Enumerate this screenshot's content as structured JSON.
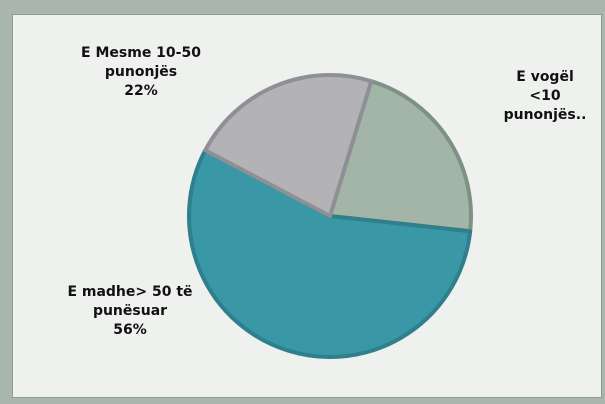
{
  "chart_data": {
    "type": "pie",
    "categories": [
      "E vogël <10 punonjës..",
      "E madhe> 50 të punësuar",
      "E Mesme 10-50 punonjës"
    ],
    "values": [
      22,
      56,
      22
    ],
    "value_labels": [
      null,
      "56%",
      "22%"
    ],
    "colors": [
      "#a3b5a6",
      "#3a97a6",
      "#b3b3b6"
    ],
    "edge_colors": [
      "#7d9285",
      "#2f7f8c",
      "#8e9096"
    ]
  }
}
